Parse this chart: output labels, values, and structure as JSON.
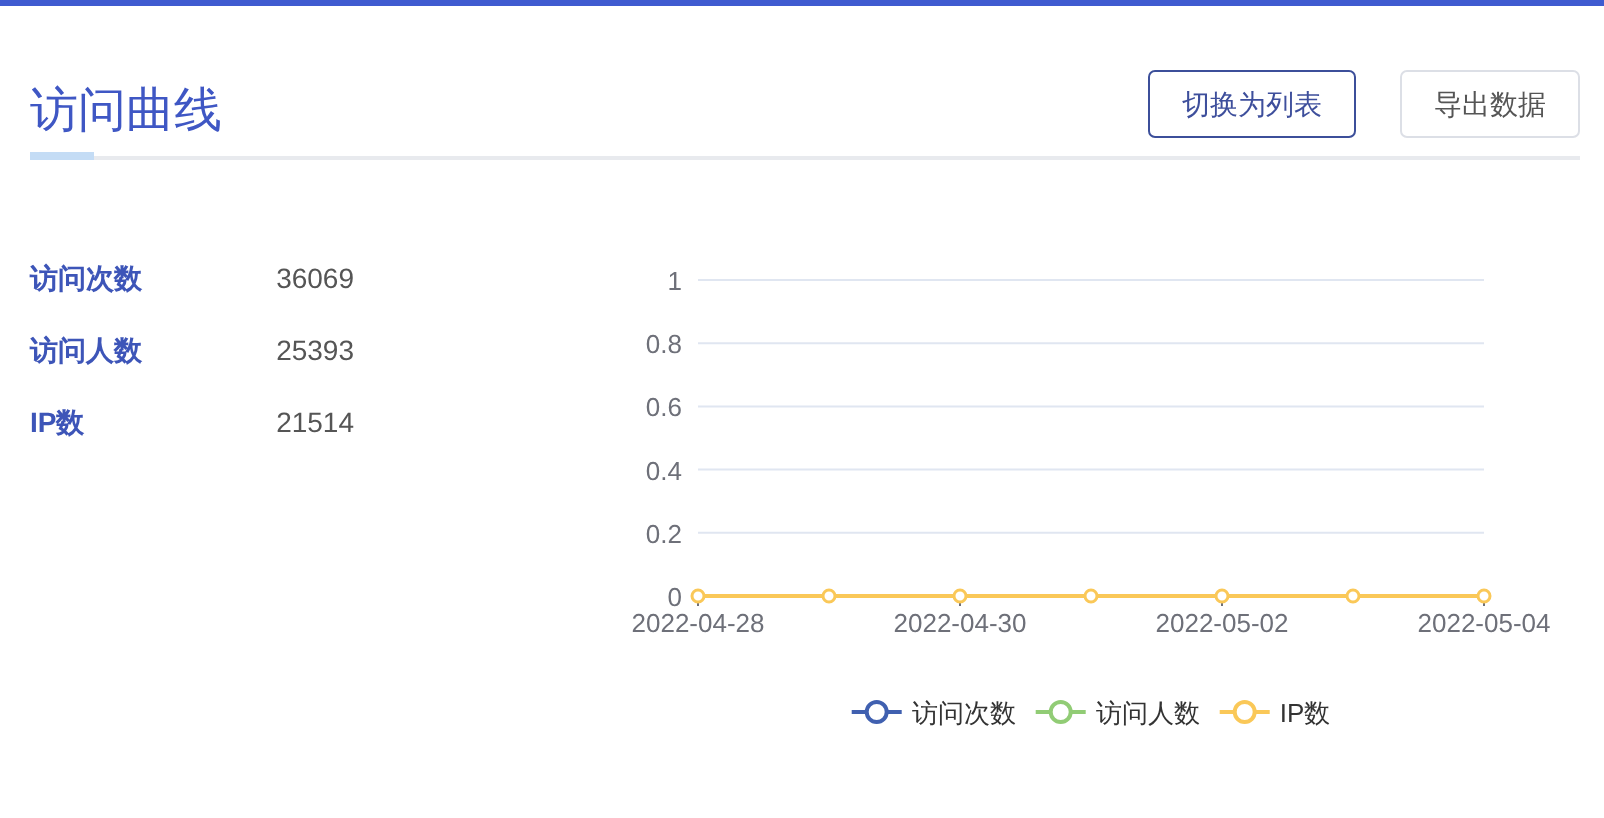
{
  "chart_data": [
    {
      "type": "other",
      "title": "访问曲线",
      "categories": [
        "访问次数",
        "访问人数",
        "IP数"
      ],
      "values": [
        36069,
        25393,
        21514
      ],
      "data_labels": true,
      "annotations": [
        "切换为列表",
        "导出数据"
      ]
    },
    {
      "type": "line",
      "categories": [
        "2022-04-28",
        null,
        "2022-04-30",
        null,
        "2022-05-02",
        null,
        "2022-05-04"
      ],
      "series": [
        {
          "name": "访问次数",
          "color": "#4060b0",
          "values": [
            null,
            null,
            null,
            null,
            null,
            null,
            null
          ]
        },
        {
          "name": "访问人数",
          "color": "#91cc75",
          "values": [
            null,
            null,
            null,
            null,
            null,
            null,
            null
          ]
        },
        {
          "name": "IP数",
          "color": "#fac858",
          "values": [
            0,
            0,
            0,
            0,
            0,
            0,
            0
          ]
        }
      ],
      "ylim": [
        0,
        1
      ],
      "yticks": [
        0,
        0.2,
        0.4,
        0.6,
        0.8,
        1
      ],
      "grid": "y",
      "legend": "bottom",
      "marker": "circle",
      "line_style": "solid"
    }
  ]
}
